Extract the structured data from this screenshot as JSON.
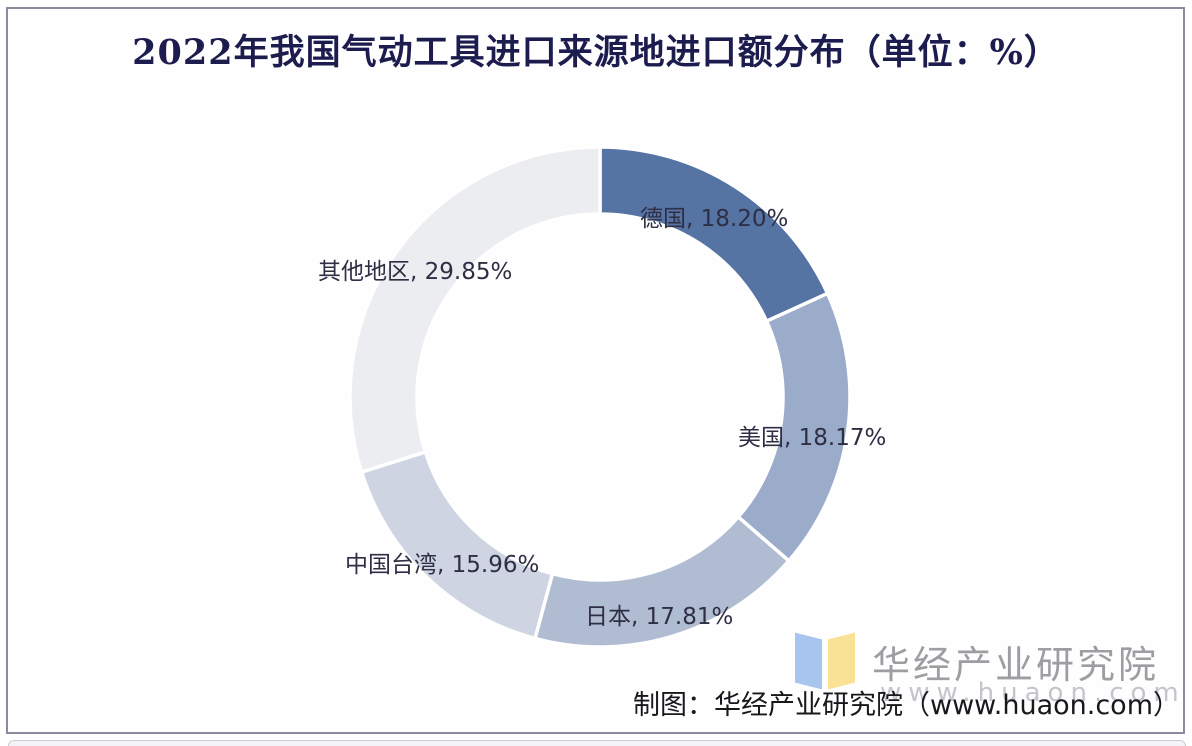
{
  "page": {
    "title": "2022年我国气动工具进口来源地进口额分布（单位：%）",
    "footer": "制图：华经产业研究院（www.huaon.com）"
  },
  "logo": {
    "name": "华经产业研究院",
    "url": "www.huaon.com",
    "book_blue": "#a8c5f0",
    "book_yellow": "#f9e196"
  },
  "chart_data": {
    "type": "pie",
    "subtype": "donut",
    "title": "2022年我国气动工具进口来源地进口额分布（单位：%）",
    "unit": "%",
    "categories": [
      "德国",
      "美国",
      "日本",
      "中国台湾",
      "其他地区"
    ],
    "values": [
      18.2,
      18.17,
      17.81,
      15.96,
      29.85
    ],
    "colors": [
      "#5573a3",
      "#9baccb",
      "#b0bcd2",
      "#cfd4e2",
      "#ecedf1"
    ],
    "labels": [
      "德国, 18.20%",
      "美国, 18.17%",
      "日本, 17.81%",
      "中国台湾, 15.96%",
      "其他地区, 29.85%"
    ],
    "start_angle_deg": 0,
    "direction": "clockwise",
    "inner_radius_ratio": 0.73,
    "gap_color": "#ffffff",
    "label_color": "#2e2e44",
    "legend": "none",
    "title_color": "#1c1c4e"
  }
}
